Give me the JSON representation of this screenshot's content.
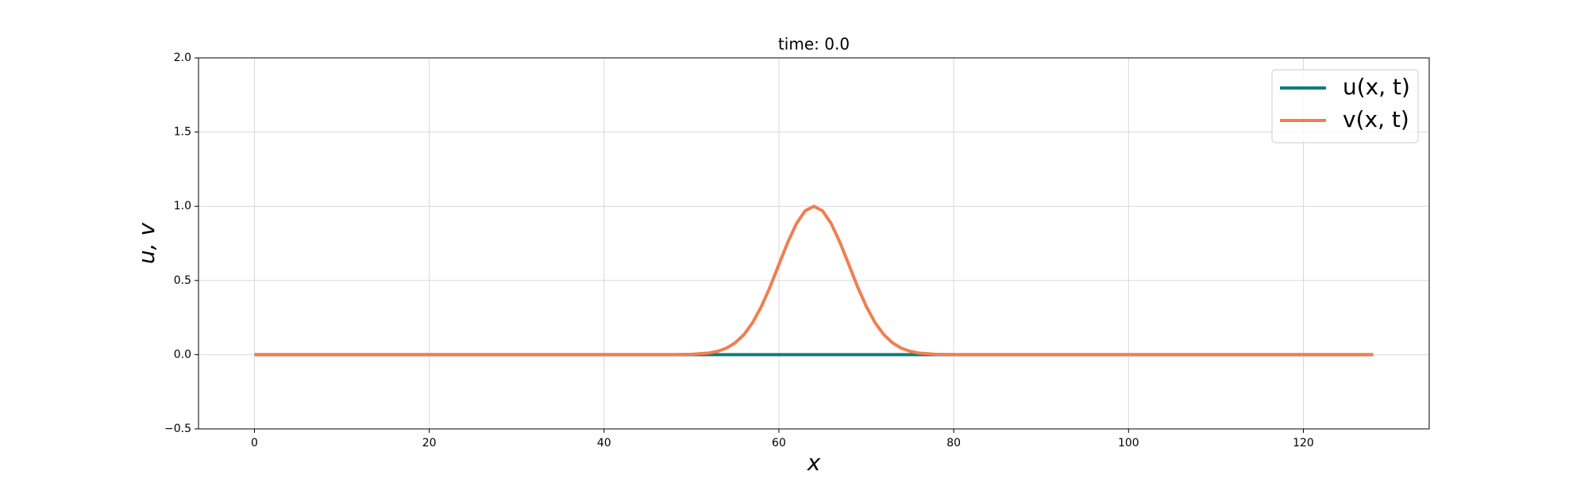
{
  "chart_data": {
    "type": "line",
    "title": "time:  0.0",
    "x_label": "x",
    "y_label": "u, v",
    "x": [
      0,
      8,
      16,
      24,
      32,
      40,
      48,
      50,
      52,
      53,
      54,
      55,
      56,
      57,
      58,
      59,
      60,
      61,
      62,
      63,
      64,
      65,
      66,
      67,
      68,
      69,
      70,
      71,
      72,
      73,
      74,
      75,
      76,
      78,
      80,
      88,
      96,
      104,
      112,
      120,
      128
    ],
    "series": [
      {
        "name": "u(x, t)",
        "color": "#0f7d78",
        "values": [
          0,
          0,
          0,
          0,
          0,
          0,
          0,
          0,
          0,
          0,
          0,
          0,
          0,
          0,
          0,
          0,
          0,
          0,
          0,
          0,
          0,
          0,
          0,
          0,
          0,
          0,
          0,
          0,
          0,
          0,
          0,
          0,
          0,
          0,
          0,
          0,
          0,
          0,
          0,
          0,
          0
        ]
      },
      {
        "name": "v(x, t)",
        "color": "#f07f4f",
        "values": [
          0,
          0,
          0,
          0,
          0,
          0,
          0,
          0.002,
          0.011,
          0.023,
          0.044,
          0.08,
          0.135,
          0.216,
          0.325,
          0.458,
          0.607,
          0.755,
          0.882,
          0.969,
          1,
          0.969,
          0.882,
          0.755,
          0.607,
          0.458,
          0.325,
          0.216,
          0.135,
          0.08,
          0.044,
          0.023,
          0.011,
          0.002,
          0,
          0,
          0,
          0,
          0,
          0,
          0
        ]
      }
    ],
    "xlim": [
      -6.4,
      134.4
    ],
    "ylim": [
      -0.5,
      2
    ],
    "xticks": [
      0,
      20,
      40,
      60,
      80,
      100,
      120
    ],
    "yticks": [
      {
        "value": -0.5,
        "label": "−0.5"
      },
      {
        "value": 0,
        "label": "0.0"
      },
      0.5,
      {
        "value": 1,
        "label": "1.0"
      },
      1.5,
      {
        "value": 2,
        "label": "2.0"
      }
    ],
    "grid": true,
    "legend_position": "upper right"
  }
}
